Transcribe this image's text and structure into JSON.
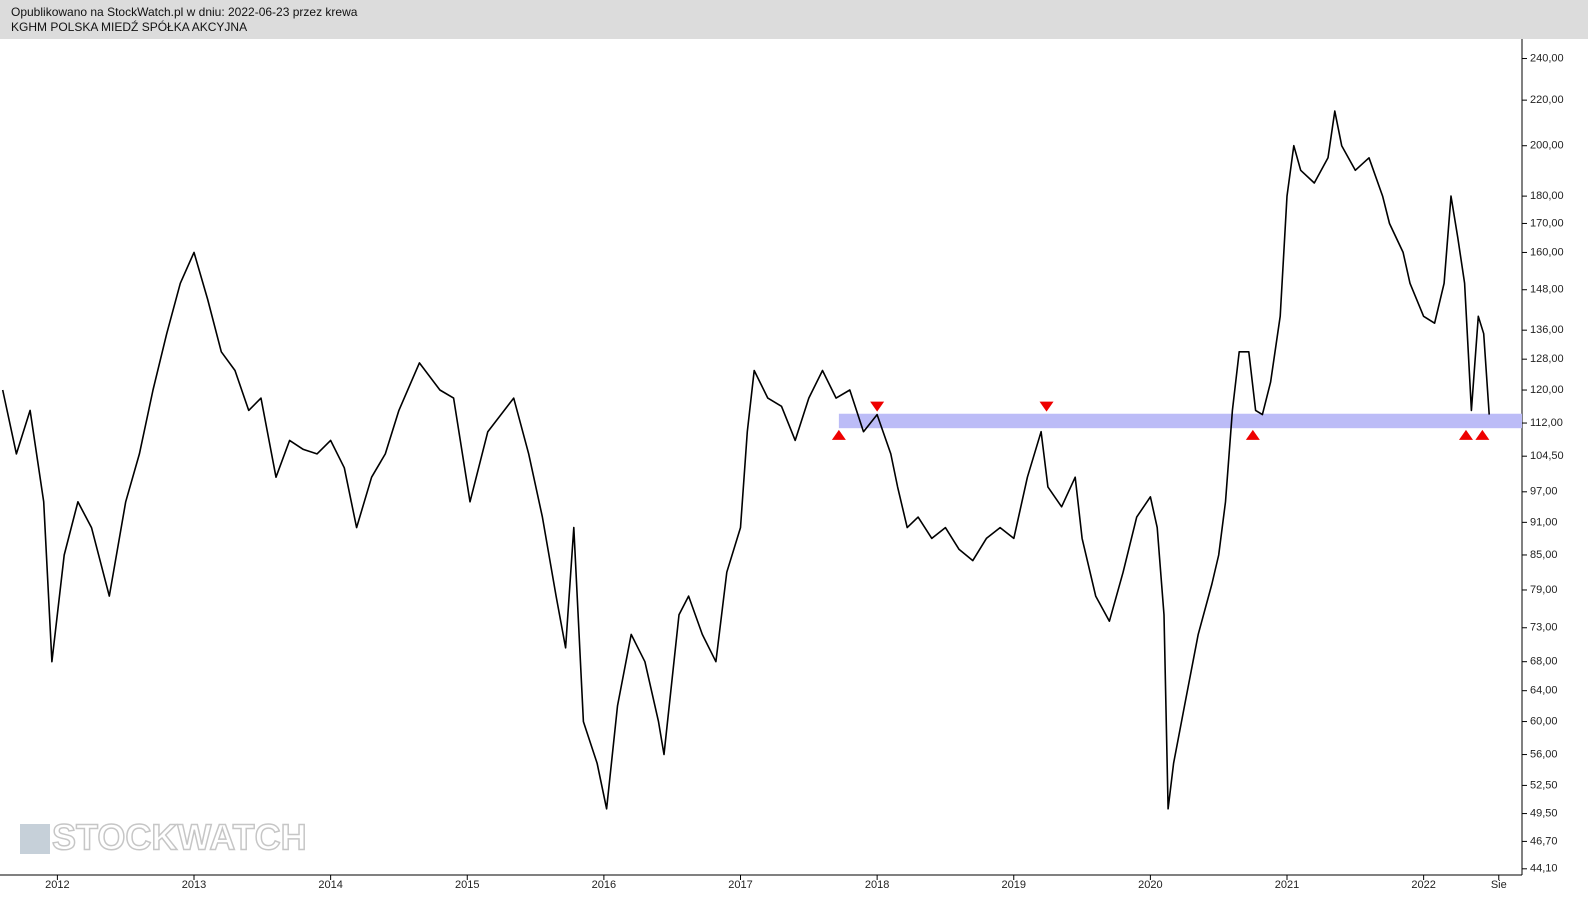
{
  "header": {
    "line1": "Opublikowano na StockWatch.pl w dniu: 2022-06-23 przez krewa",
    "line2": "KGHM POLSKA MIEDŹ SPÓŁKA AKCYJNA"
  },
  "watermark": "STOCKWATCH",
  "chart_data": {
    "type": "line",
    "color": "#000000",
    "log_scale": true,
    "x": [
      2011.6,
      2011.7,
      2011.8,
      2011.9,
      2011.96,
      2012.05,
      2012.15,
      2012.25,
      2012.38,
      2012.5,
      2012.6,
      2012.7,
      2012.8,
      2012.9,
      2013.0,
      2013.1,
      2013.2,
      2013.3,
      2013.4,
      2013.49,
      2013.6,
      2013.7,
      2013.8,
      2013.9,
      2014.0,
      2014.1,
      2014.19,
      2014.3,
      2014.4,
      2014.5,
      2014.65,
      2014.8,
      2014.9,
      2015.02,
      2015.15,
      2015.34,
      2015.45,
      2015.55,
      2015.65,
      2015.72,
      2015.78,
      2015.85,
      2015.95,
      2016.02,
      2016.1,
      2016.2,
      2016.3,
      2016.4,
      2016.44,
      2016.55,
      2016.62,
      2016.72,
      2016.82,
      2016.9,
      2017.0,
      2017.05,
      2017.1,
      2017.2,
      2017.3,
      2017.4,
      2017.5,
      2017.6,
      2017.7,
      2017.8,
      2017.9,
      2018.0,
      2018.1,
      2018.15,
      2018.22,
      2018.3,
      2018.4,
      2018.5,
      2018.6,
      2018.7,
      2018.8,
      2018.9,
      2019.0,
      2019.1,
      2019.2,
      2019.25,
      2019.35,
      2019.45,
      2019.5,
      2019.6,
      2019.7,
      2019.8,
      2019.9,
      2020.0,
      2020.05,
      2020.1,
      2020.13,
      2020.17,
      2020.25,
      2020.35,
      2020.45,
      2020.5,
      2020.55,
      2020.6,
      2020.65,
      2020.72,
      2020.77,
      2020.82,
      2020.88,
      2020.95,
      2021.0,
      2021.05,
      2021.1,
      2021.2,
      2021.3,
      2021.35,
      2021.4,
      2021.5,
      2021.6,
      2021.7,
      2021.75,
      2021.85,
      2021.9,
      2022.0,
      2022.08,
      2022.15,
      2022.2,
      2022.25,
      2022.3,
      2022.35,
      2022.4,
      2022.44,
      2022.48
    ],
    "values": [
      120,
      105,
      115,
      95,
      68,
      85,
      95,
      90,
      78,
      95,
      105,
      120,
      135,
      150,
      160,
      145,
      130,
      125,
      115,
      118,
      100,
      108,
      106,
      105,
      108,
      102,
      90,
      100,
      105,
      115,
      127,
      120,
      118,
      95,
      110,
      118,
      105,
      92,
      78,
      70,
      90,
      60,
      55,
      50,
      62,
      72,
      68,
      60,
      56,
      75,
      78,
      72,
      68,
      82,
      90,
      110,
      125,
      118,
      116,
      108,
      118,
      125,
      118,
      120,
      110,
      114,
      105,
      98,
      90,
      92,
      88,
      90,
      86,
      84,
      88,
      90,
      88,
      100,
      110,
      98,
      94,
      100,
      88,
      78,
      74,
      82,
      92,
      96,
      90,
      75,
      50,
      55,
      62,
      72,
      80,
      85,
      95,
      115,
      130,
      130,
      115,
      114,
      122,
      140,
      180,
      200,
      190,
      185,
      195,
      215,
      200,
      190,
      195,
      180,
      170,
      160,
      150,
      140,
      138,
      150,
      180,
      165,
      150,
      115,
      140,
      135,
      114
    ],
    "xlim": [
      2011.58,
      2022.72
    ],
    "ylim": [
      42.9,
      250
    ],
    "xticks": [
      2012,
      2013,
      2014,
      2015,
      2016,
      2017,
      2018,
      2019,
      2020,
      2021,
      2022,
      {
        "value": 2022.55,
        "label": "Sie"
      }
    ],
    "yticks": [
      {
        "value": 240,
        "label": "240,00"
      },
      {
        "value": 220,
        "label": "220,00"
      },
      {
        "value": 200,
        "label": "200,00"
      },
      {
        "value": 180,
        "label": "180,00"
      },
      {
        "value": 170,
        "label": "170,00"
      },
      {
        "value": 160,
        "label": "160,00"
      },
      {
        "value": 148,
        "label": "148,00"
      },
      {
        "value": 136,
        "label": "136,00"
      },
      {
        "value": 128,
        "label": "128,00"
      },
      {
        "value": 120,
        "label": "120,00"
      },
      {
        "value": 112,
        "label": "112,00"
      },
      {
        "value": 104.5,
        "label": "104,50"
      },
      {
        "value": 97,
        "label": "97,00"
      },
      {
        "value": 91,
        "label": "91,00"
      },
      {
        "value": 85,
        "label": "85,00"
      },
      {
        "value": 79,
        "label": "79,00"
      },
      {
        "value": 73,
        "label": "73,00"
      },
      {
        "value": 68,
        "label": "68,00"
      },
      {
        "value": 64,
        "label": "64,00"
      },
      {
        "value": 60,
        "label": "60,00"
      },
      {
        "value": 56,
        "label": "56,00"
      },
      {
        "value": 52.5,
        "label": "52,50"
      },
      {
        "value": 49.5,
        "label": "49,50"
      },
      {
        "value": 46.7,
        "label": "46,70"
      },
      {
        "value": 44.1,
        "label": "44,10"
      }
    ],
    "zone": {
      "x": [
        2017.72,
        2022.72
      ],
      "y": [
        110.8,
        114.2
      ],
      "color": "#bcbcf7"
    },
    "markers": {
      "color": "#ee0000",
      "x": [
        2017.72,
        2018.0,
        2019.24,
        2020.75,
        2022.31,
        2022.43
      ],
      "y": [
        108.8,
        116.4,
        116.4,
        108.8,
        108.8,
        108.8
      ],
      "direction": [
        "up",
        "down",
        "down",
        "up",
        "up",
        "up"
      ]
    }
  }
}
